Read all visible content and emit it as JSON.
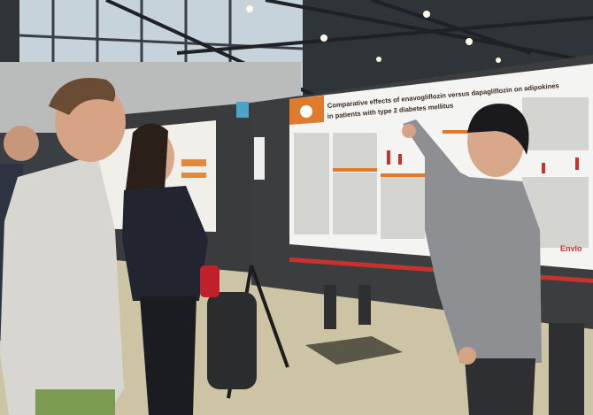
{
  "poster": {
    "title": "Comparative effects of enavogliflozin versus dapagliflozin on adipokines",
    "subtitle": "in patients with type 2 diabetes mellitus",
    "logo": "Envlo"
  }
}
